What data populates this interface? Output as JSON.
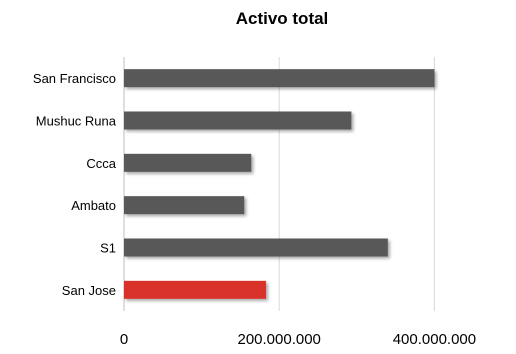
{
  "chart_data": {
    "type": "bar",
    "orientation": "horizontal",
    "title": "Activo total",
    "categories": [
      "San Francisco",
      "Mushuc Runa",
      "Ccca",
      "Ambato",
      "S1",
      "San Jose"
    ],
    "values": [
      400000000,
      293000000,
      164000000,
      155000000,
      340000000,
      183000000
    ],
    "xlim": [
      0,
      500000000
    ],
    "xticks": [
      0,
      200000000,
      400000000
    ],
    "xtick_labels": [
      "0",
      "200.000.000",
      "400.000.000"
    ],
    "xlabel": "",
    "ylabel": "",
    "grid": true,
    "legend": "none",
    "colors": {
      "default_bar": "#595959",
      "highlight_bar": "#d9302a",
      "gridline": "#d9d9d9"
    },
    "highlight_category": "San Jose"
  }
}
